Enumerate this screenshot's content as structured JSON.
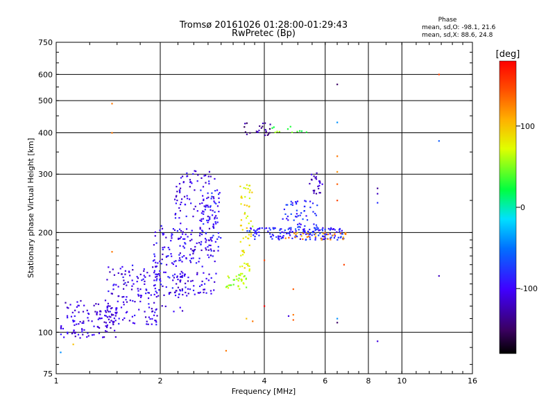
{
  "chart_data": {
    "type": "scatter",
    "title": "Tromsø 20161026 01:28:00-01:29:43",
    "subtitle": "RwPretec (Bp)",
    "xlabel": "Frequency [MHz]",
    "ylabel": "Stationary phase Virtual Height [km]",
    "x_scale": "log2",
    "y_scale": "log",
    "xlim": [
      1,
      16
    ],
    "ylim": [
      75,
      750
    ],
    "x_ticks": [
      1,
      2,
      4,
      6,
      8,
      10,
      16
    ],
    "y_ticks": [
      75,
      100,
      200,
      300,
      400,
      500,
      600,
      750
    ],
    "x_grid": [
      2,
      4,
      6,
      8,
      10
    ],
    "y_grid": [
      100,
      200,
      300,
      400,
      500,
      600
    ],
    "grid": true,
    "phase_box": {
      "title": "Phase",
      "line_o": "mean, sd,O: -98.1, 21.6",
      "line_x": "mean, sd,X: 88.6, 24.8"
    },
    "colorbar": {
      "label": "[deg]",
      "ticks": [
        100,
        0,
        -100
      ],
      "range": [
        -180,
        180
      ],
      "colormap": "rainbow"
    },
    "clusters": [
      {
        "x_range": [
          1.03,
          1.5
        ],
        "y_range": [
          96,
          125
        ],
        "phase": -110,
        "count": 120
      },
      {
        "x_range": [
          1.4,
          2.0
        ],
        "y_range": [
          105,
          160
        ],
        "phase": -105,
        "count": 140
      },
      {
        "x_range": [
          1.9,
          2.4
        ],
        "y_range": [
          115,
          210
        ],
        "phase": -100,
        "count": 120
      },
      {
        "x_range": [
          2.2,
          2.9
        ],
        "y_range": [
          130,
          310
        ],
        "phase": -105,
        "count": 200
      },
      {
        "x_range": [
          2.6,
          3.0
        ],
        "y_range": [
          175,
          270
        ],
        "phase": -90,
        "count": 60
      },
      {
        "x_range": [
          3.1,
          3.6
        ],
        "y_range": [
          135,
          150
        ],
        "phase": 60,
        "count": 30
      },
      {
        "x_range": [
          3.4,
          3.7
        ],
        "y_range": [
          150,
          280
        ],
        "phase": 80,
        "count": 60
      },
      {
        "x_range": [
          3.55,
          6.8
        ],
        "y_range": [
          190,
          207
        ],
        "phase": -85,
        "count": 150
      },
      {
        "x_range": [
          4.6,
          7.0
        ],
        "y_range": [
          190,
          200
        ],
        "phase": 120,
        "count": 30
      },
      {
        "x_range": [
          4.5,
          5.7
        ],
        "y_range": [
          200,
          250
        ],
        "phase": -80,
        "count": 60
      },
      {
        "x_range": [
          5.4,
          5.9
        ],
        "y_range": [
          260,
          305
        ],
        "phase": -120,
        "count": 25
      },
      {
        "x_range": [
          3.5,
          4.2
        ],
        "y_range": [
          392,
          430
        ],
        "phase": -135,
        "count": 25
      },
      {
        "x_range": [
          4.2,
          5.3
        ],
        "y_range": [
          398,
          418
        ],
        "phase": 40,
        "count": 12
      }
    ],
    "outliers": [
      {
        "x": 1.45,
        "y": 490,
        "phase": 130
      },
      {
        "x": 1.45,
        "y": 400,
        "phase": 130
      },
      {
        "x": 1.45,
        "y": 175,
        "phase": 130
      },
      {
        "x": 1.03,
        "y": 87,
        "phase": -40
      },
      {
        "x": 1.12,
        "y": 92,
        "phase": 100
      },
      {
        "x": 3.1,
        "y": 88,
        "phase": 130
      },
      {
        "x": 6.5,
        "y": 560,
        "phase": -150
      },
      {
        "x": 6.5,
        "y": 430,
        "phase": -40
      },
      {
        "x": 6.5,
        "y": 340,
        "phase": 130
      },
      {
        "x": 6.5,
        "y": 305,
        "phase": 120
      },
      {
        "x": 6.5,
        "y": 280,
        "phase": 140
      },
      {
        "x": 6.5,
        "y": 250,
        "phase": 150
      },
      {
        "x": 6.5,
        "y": 110,
        "phase": -40
      },
      {
        "x": 6.5,
        "y": 107,
        "phase": -150
      },
      {
        "x": 6.8,
        "y": 160,
        "phase": 150
      },
      {
        "x": 8.5,
        "y": 272,
        "phase": -135
      },
      {
        "x": 8.5,
        "y": 262,
        "phase": -120
      },
      {
        "x": 8.5,
        "y": 246,
        "phase": -80
      },
      {
        "x": 8.5,
        "y": 94,
        "phase": -110
      },
      {
        "x": 12.8,
        "y": 378,
        "phase": -60
      },
      {
        "x": 12.8,
        "y": 600,
        "phase": 150
      },
      {
        "x": 12.8,
        "y": 148,
        "phase": -120
      },
      {
        "x": 4.0,
        "y": 120,
        "phase": 180
      },
      {
        "x": 4.0,
        "y": 165,
        "phase": 150
      },
      {
        "x": 4.7,
        "y": 112,
        "phase": -110
      },
      {
        "x": 4.85,
        "y": 135,
        "phase": 140
      },
      {
        "x": 4.85,
        "y": 113,
        "phase": 130
      },
      {
        "x": 4.85,
        "y": 109,
        "phase": 140
      },
      {
        "x": 3.7,
        "y": 108,
        "phase": 130
      },
      {
        "x": 3.55,
        "y": 110,
        "phase": 100
      }
    ]
  }
}
